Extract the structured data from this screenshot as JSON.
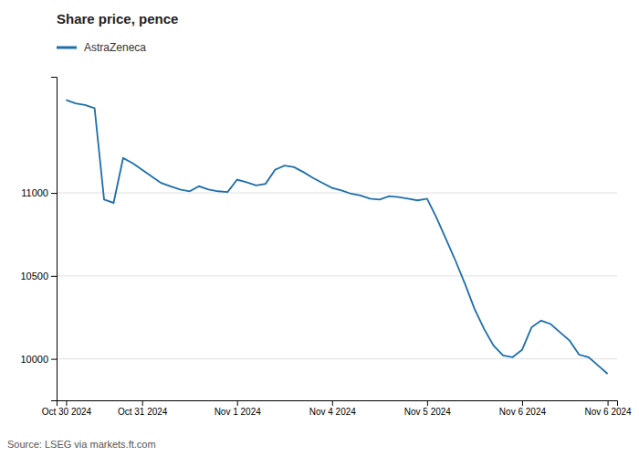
{
  "chart_data": {
    "type": "line",
    "title": "Share price, pence",
    "annotations": [
      "Source: LSEG via markets.ft.com"
    ],
    "categories": [
      "Oct 30 2024",
      null,
      null,
      null,
      null,
      null,
      null,
      null,
      "Oct 31 2024",
      null,
      null,
      null,
      null,
      null,
      null,
      null,
      null,
      null,
      "Nov 1 2024",
      null,
      null,
      null,
      null,
      null,
      null,
      null,
      null,
      null,
      "Nov 4 2024",
      null,
      null,
      null,
      null,
      null,
      null,
      null,
      null,
      null,
      "Nov 5 2024",
      null,
      null,
      null,
      null,
      null,
      null,
      null,
      null,
      null,
      "Nov 6 2024",
      null,
      null,
      null,
      null,
      null,
      null,
      null,
      null,
      "Nov 6 2024"
    ],
    "series": [
      {
        "name": "AstraZeneca",
        "color": "#1c6eab",
        "values": [
          11560,
          11540,
          11530,
          11510,
          10960,
          10940,
          11210,
          11180,
          11140,
          11100,
          11060,
          11040,
          11020,
          11010,
          11040,
          11020,
          11010,
          11005,
          11080,
          11065,
          11045,
          11055,
          11140,
          11165,
          11155,
          11125,
          11090,
          11060,
          11030,
          11015,
          10995,
          10985,
          10965,
          10960,
          10980,
          10975,
          10965,
          10955,
          10965,
          10850,
          10720,
          10590,
          10450,
          10300,
          10180,
          10080,
          10020,
          10010,
          10055,
          10190,
          10230,
          10210,
          10160,
          10110,
          10025,
          10010,
          9960,
          9910
        ]
      }
    ],
    "ylim": [
      9750,
      11700
    ],
    "yticks": [
      10000,
      10500,
      11000
    ],
    "grid": true,
    "legend": "top-left"
  }
}
